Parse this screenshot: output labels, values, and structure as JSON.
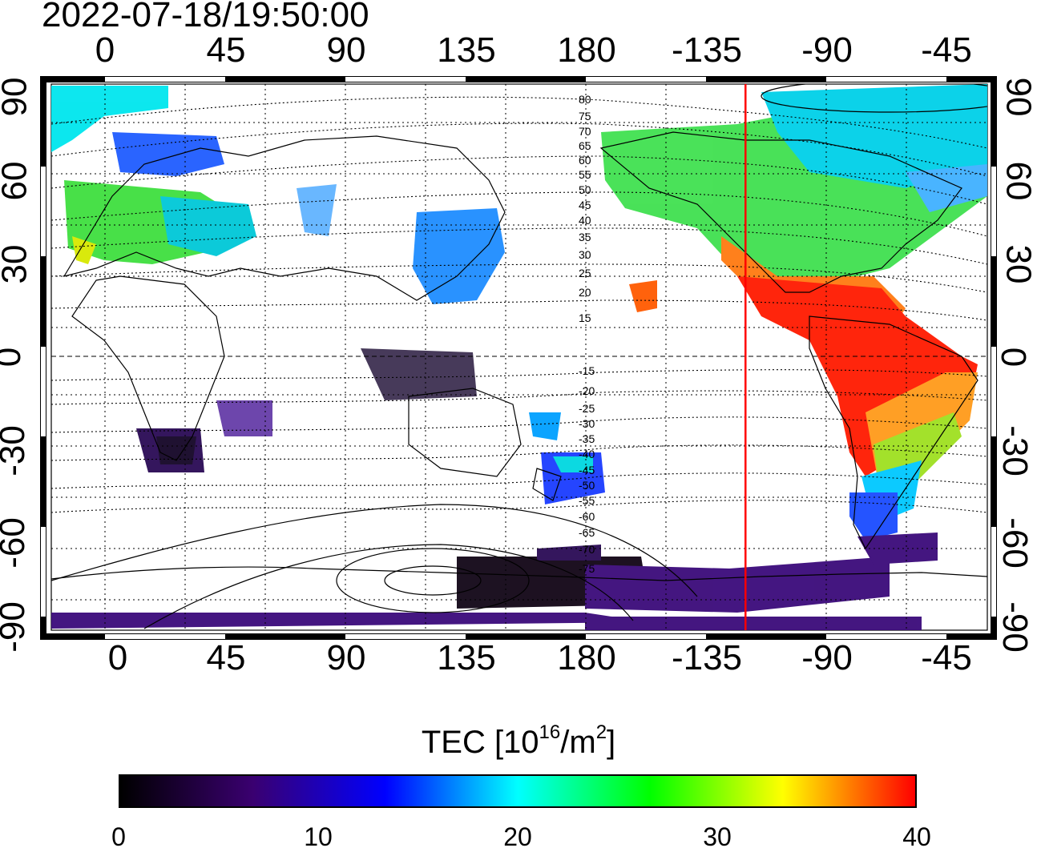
{
  "timestamp": "2022-07-18/19:50:00",
  "map": {
    "lon_ticks": [
      "0",
      "45",
      "90",
      "135",
      "180",
      "-135",
      "-90",
      "-45"
    ],
    "lat_ticks": [
      "90",
      "60",
      "30",
      "0",
      "-30",
      "-60",
      "-90"
    ],
    "marker_longitude": -119,
    "marker_color": "#ff0000",
    "contour_labels": [
      "80",
      "75",
      "70",
      "65",
      "60",
      "55",
      "50",
      "45",
      "40",
      "35",
      "30",
      "25",
      "20",
      "15",
      "-15",
      "-20",
      "-25",
      "-30",
      "-35",
      "-40",
      "-45",
      "-50",
      "-55",
      "-60",
      "-65",
      "-70",
      "-75"
    ]
  },
  "colorbar": {
    "title_main": "TEC  [10",
    "title_sup1": "16",
    "title_mid": "/m",
    "title_sup2": "2",
    "title_end": "]",
    "min": 0,
    "max": 40,
    "ticks": [
      "0",
      "10",
      "20",
      "30",
      "40"
    ],
    "colors": [
      "#000000",
      "#3a0070",
      "#0000ff",
      "#00ffff",
      "#00ff00",
      "#ffff00",
      "#ff0000"
    ]
  }
}
